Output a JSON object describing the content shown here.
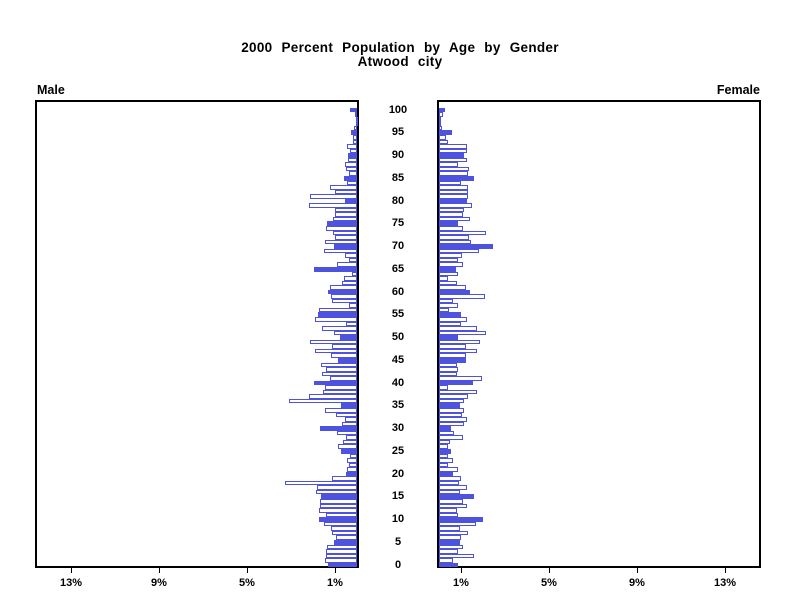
{
  "header": {
    "title_line1": "2000 Percent Population by Age by Gender",
    "title_line2": "Atwood city",
    "left_side_label": "Male",
    "right_side_label": "Female"
  },
  "chart_data": {
    "type": "bar",
    "subtype": "population-pyramid",
    "title": "2000 Percent Population by Age by Gender",
    "subtitle": "Atwood city",
    "unit": "percent of population",
    "axis": {
      "age_min": 0,
      "age_max": 100,
      "age_tick_interval": 5,
      "age_tick_labels": [
        "0",
        "5",
        "10",
        "15",
        "20",
        "25",
        "30",
        "35",
        "40",
        "45",
        "50",
        "55",
        "60",
        "65",
        "70",
        "75",
        "80",
        "85",
        "90",
        "95",
        "100"
      ],
      "x_tick_values": [
        1,
        5,
        9,
        13
      ],
      "x_tick_labels": [
        "1%",
        "5%",
        "9%",
        "13%"
      ],
      "xlim_percent": [
        0,
        14.7
      ],
      "grid": false,
      "legend": "none"
    },
    "style": {
      "bar_outline_color": "#4d52df",
      "bar_fill_normal": "#ffffff",
      "bar_fill_every_5_years": "#4d52df",
      "frame_color": "#000000",
      "text_color": "#000000"
    },
    "series": [
      {
        "name": "Male",
        "direction": "left",
        "ages": "0-100 by 1",
        "values": [
          1.32,
          1.47,
          1.39,
          1.42,
          1.35,
          1.06,
          0.97,
          1.12,
          1.17,
          1.52,
          1.73,
          1.39,
          1.73,
          1.67,
          1.67,
          1.62,
          1.88,
          1.8,
          3.26,
          1.12,
          0.48,
          0.44,
          0.36,
          0.45,
          0.33,
          0.74,
          0.86,
          0.64,
          0.48,
          0.91,
          1.67,
          0.67,
          0.53,
          0.94,
          1.44,
          0.71,
          3.11,
          2.2,
          1.55,
          1.45,
          1.95,
          1.24,
          1.58,
          1.39,
          1.62,
          0.86,
          1.17,
          1.92,
          1.12,
          2.12,
          0.76,
          1.06,
          1.6,
          0.5,
          1.92,
          1.77,
          1.73,
          0.35,
          1.15,
          1.2,
          1.32,
          1.25,
          0.7,
          0.6,
          0.25,
          1.95,
          0.9,
          0.35,
          0.55,
          1.5,
          1.06,
          1.45,
          1.0,
          1.1,
          1.4,
          1.35,
          1.1,
          1.0,
          0.98,
          2.2,
          0.56,
          2.12,
          0.98,
          1.21,
          0.45,
          0.6,
          0.38,
          0.48,
          0.53,
          0.42,
          0.42,
          0.33,
          0.47,
          0.2,
          0.2,
          0.29,
          0.12,
          0.05,
          0.05,
          0.08,
          0.3
        ]
      },
      {
        "name": "Female",
        "direction": "right",
        "ages": "0-100 by 1",
        "values": [
          0.85,
          0.65,
          1.61,
          0.85,
          1.11,
          0.95,
          1.0,
          1.33,
          0.95,
          1.67,
          2.02,
          0.85,
          0.8,
          1.26,
          1.11,
          1.61,
          0.95,
          1.26,
          0.91,
          1.0,
          0.65,
          0.85,
          0.39,
          0.65,
          0.39,
          0.55,
          0.39,
          0.5,
          1.11,
          0.7,
          0.55,
          1.15,
          1.26,
          1.06,
          1.15,
          0.95,
          1.12,
          1.33,
          1.71,
          0.39,
          1.56,
          1.94,
          0.8,
          0.85,
          0.8,
          1.21,
          1.21,
          1.71,
          1.21,
          1.86,
          0.85,
          2.12,
          1.71,
          1.0,
          1.26,
          1.0,
          0.45,
          0.85,
          0.65,
          2.09,
          1.41,
          1.23,
          0.8,
          0.42,
          0.85,
          0.76,
          1.11,
          0.88,
          1.03,
          1.83,
          2.47,
          1.45,
          1.36,
          2.12,
          1.08,
          0.85,
          1.41,
          1.11,
          1.15,
          1.52,
          1.26,
          1.33,
          1.3,
          1.33,
          1.0,
          1.61,
          1.33,
          1.38,
          0.85,
          1.26,
          1.15,
          1.25,
          1.29,
          0.39,
          0.3,
          0.61,
          0.15,
          0.1,
          0.1,
          0.2,
          0.27
        ]
      }
    ]
  }
}
